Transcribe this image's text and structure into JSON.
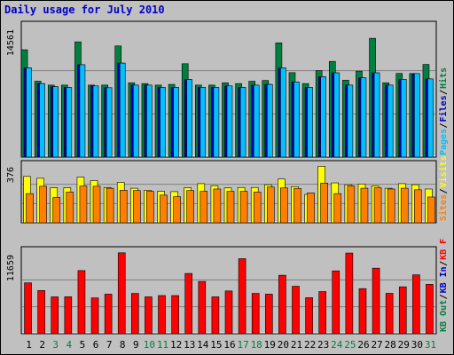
{
  "title": "Daily usage for July 2010",
  "colors": {
    "hits": "#008040",
    "files": "#00c0ff",
    "pages": "#0000c0",
    "visits": "#ffff00",
    "sites": "#ff8000",
    "kbf": "#ff0000",
    "kbin": "#0000c0",
    "kbout": "#008040",
    "weekday_label": "#000000",
    "weekend_label": "#008040",
    "panel_bg": "#c0c0c0",
    "title": "#0000c8"
  },
  "chart_data": [
    {
      "type": "bar",
      "panel": "hits-files-pages",
      "max_label": "14561",
      "ylim": [
        0,
        14561
      ],
      "legend": [
        {
          "text": "Hits",
          "color": "#008040"
        },
        {
          "text": "Files",
          "color": "#0000c0"
        },
        {
          "text": "Pages",
          "color": "#00c0ff"
        }
      ],
      "categories": [
        "1",
        "2",
        "3",
        "4",
        "5",
        "6",
        "7",
        "8",
        "9",
        "10",
        "11",
        "12",
        "13",
        "14",
        "15",
        "16",
        "17",
        "18",
        "19",
        "20",
        "21",
        "22",
        "23",
        "24",
        "25",
        "26",
        "27",
        "28",
        "29",
        "30",
        "31"
      ],
      "series": [
        {
          "name": "Hits",
          "color": "#008040",
          "values": [
            12060,
            8530,
            8090,
            8090,
            12950,
            8090,
            8090,
            12490,
            8350,
            8260,
            8090,
            8170,
            10490,
            8090,
            8090,
            8350,
            8260,
            8520,
            8610,
            12840,
            9490,
            8260,
            9720,
            10750,
            8640,
            9660,
            13350,
            8350,
            9400,
            9390,
            10410
          ]
        },
        {
          "name": "Files",
          "color": "#0000c0",
          "values": [
            10030,
            8260,
            7910,
            7830,
            10380,
            8000,
            7800,
            10560,
            8090,
            8090,
            7830,
            7830,
            8720,
            7830,
            7830,
            8000,
            7830,
            8090,
            8170,
            10030,
            8440,
            7830,
            9030,
            9470,
            8090,
            8910,
            9470,
            8090,
            8740,
            9390,
            8790
          ]
        },
        {
          "name": "Pages",
          "color": "#00c0ff",
          "values": [
            10030,
            8260,
            7910,
            7830,
            10380,
            8000,
            7800,
            10560,
            8090,
            8090,
            7830,
            7830,
            8720,
            7830,
            7830,
            8000,
            7830,
            8090,
            8170,
            10030,
            8440,
            7830,
            9030,
            9470,
            8090,
            8910,
            9470,
            8090,
            8740,
            9390,
            8790
          ]
        }
      ]
    },
    {
      "type": "bar",
      "panel": "visits-sites",
      "max_label": "376",
      "ylim": [
        0,
        376
      ],
      "legend": [
        {
          "text": "Visits",
          "color": "#ffff00"
        },
        {
          "text": "Sites",
          "color": "#ff8000"
        }
      ],
      "categories": [
        "1",
        "2",
        "3",
        "4",
        "5",
        "6",
        "7",
        "8",
        "9",
        "10",
        "11",
        "12",
        "13",
        "14",
        "15",
        "16",
        "17",
        "18",
        "19",
        "20",
        "21",
        "22",
        "23",
        "24",
        "25",
        "26",
        "27",
        "28",
        "29",
        "30",
        "31"
      ],
      "series": [
        {
          "name": "Visits",
          "color": "#ffff00",
          "values": [
            302,
            290,
            228,
            228,
            297,
            275,
            230,
            263,
            225,
            212,
            205,
            203,
            228,
            255,
            242,
            227,
            230,
            230,
            248,
            285,
            235,
            185,
            368,
            260,
            248,
            253,
            240,
            225,
            255,
            248,
            220
          ]
        },
        {
          "name": "Sites",
          "color": "#ff8000",
          "values": [
            190,
            238,
            165,
            200,
            240,
            238,
            225,
            212,
            210,
            205,
            180,
            170,
            210,
            205,
            220,
            205,
            205,
            200,
            233,
            227,
            223,
            195,
            258,
            190,
            240,
            225,
            228,
            220,
            225,
            215,
            168
          ]
        }
      ]
    },
    {
      "type": "bar",
      "panel": "kbytes",
      "max_label": "11659",
      "ylim": [
        0,
        11659
      ],
      "legend": [
        {
          "text": "KB F",
          "color": "#ff0000"
        },
        {
          "text": "KB In",
          "color": "#0000c0"
        },
        {
          "text": "KB Out",
          "color": "#008040"
        }
      ],
      "categories": [
        "1",
        "2",
        "3",
        "4",
        "5",
        "6",
        "7",
        "8",
        "9",
        "10",
        "11",
        "12",
        "13",
        "14",
        "15",
        "16",
        "17",
        "18",
        "19",
        "20",
        "21",
        "22",
        "23",
        "24",
        "25",
        "26",
        "27",
        "28",
        "29",
        "30",
        "31"
      ],
      "series": [
        {
          "name": "KB F",
          "color": "#ff0000",
          "values": [
            7340,
            6230,
            5320,
            5330,
            9110,
            5170,
            5710,
            11680,
            5820,
            5320,
            5510,
            5510,
            8700,
            7540,
            5320,
            6170,
            10830,
            5820,
            5710,
            8440,
            6850,
            5200,
            6080,
            9070,
            11650,
            6510,
            9460,
            5830,
            6770,
            8500,
            7130
          ]
        }
      ]
    }
  ],
  "x_labels": [
    {
      "text": "1",
      "weekend": false
    },
    {
      "text": "2",
      "weekend": false
    },
    {
      "text": "3",
      "weekend": true
    },
    {
      "text": "4",
      "weekend": true
    },
    {
      "text": "5",
      "weekend": false
    },
    {
      "text": "6",
      "weekend": false
    },
    {
      "text": "7",
      "weekend": false
    },
    {
      "text": "8",
      "weekend": false
    },
    {
      "text": "9",
      "weekend": false
    },
    {
      "text": "10",
      "weekend": true
    },
    {
      "text": "11",
      "weekend": true
    },
    {
      "text": "12",
      "weekend": false
    },
    {
      "text": "13",
      "weekend": false
    },
    {
      "text": "14",
      "weekend": false
    },
    {
      "text": "15",
      "weekend": false
    },
    {
      "text": "16",
      "weekend": false
    },
    {
      "text": "17",
      "weekend": true
    },
    {
      "text": "18",
      "weekend": true
    },
    {
      "text": "19",
      "weekend": false
    },
    {
      "text": "20",
      "weekend": false
    },
    {
      "text": "21",
      "weekend": false
    },
    {
      "text": "22",
      "weekend": false
    },
    {
      "text": "23",
      "weekend": false
    },
    {
      "text": "24",
      "weekend": true
    },
    {
      "text": "25",
      "weekend": true
    },
    {
      "text": "26",
      "weekend": false
    },
    {
      "text": "27",
      "weekend": false
    },
    {
      "text": "28",
      "weekend": false
    },
    {
      "text": "29",
      "weekend": false
    },
    {
      "text": "30",
      "weekend": false
    },
    {
      "text": "31",
      "weekend": true
    }
  ]
}
